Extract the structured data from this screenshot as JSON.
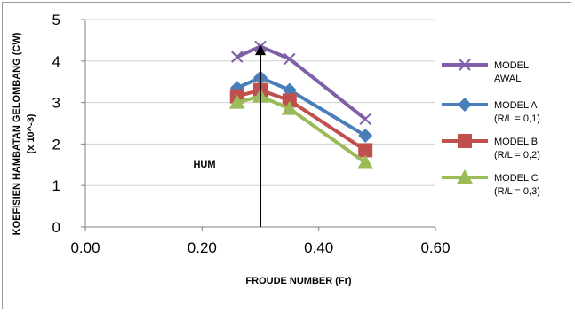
{
  "chart_data": {
    "type": "line",
    "title": "",
    "xlabel": "FROUDE NUMBER (Fr)",
    "ylabel": "KOEFISIEN HAMBATAN GELOMBANG (CW)",
    "ylabel_unit": "(x 10^-3)",
    "xlim": [
      0.0,
      0.6
    ],
    "ylim": [
      0,
      5
    ],
    "x_ticks": [
      "0.00",
      "0.20",
      "0.40",
      "0.60"
    ],
    "y_ticks": [
      "0",
      "1",
      "2",
      "3",
      "4",
      "5"
    ],
    "grid": "horizontal",
    "legend_position": "right",
    "series": [
      {
        "name": "MODEL AWAL",
        "marker": "x",
        "color": "#7f5fa8",
        "x": [
          0.26,
          0.3,
          0.35,
          0.48
        ],
        "y": [
          4.1,
          4.35,
          4.05,
          2.6
        ]
      },
      {
        "name": "MODEL A (R/L = 0,1)",
        "marker": "diamond",
        "color": "#4a7ebb",
        "x": [
          0.26,
          0.3,
          0.35,
          0.48
        ],
        "y": [
          3.35,
          3.6,
          3.3,
          2.2
        ]
      },
      {
        "name": "MODEL B (R/L = 0,2)",
        "marker": "square",
        "color": "#c0504d",
        "x": [
          0.26,
          0.3,
          0.35,
          0.48
        ],
        "y": [
          3.15,
          3.3,
          3.05,
          1.85
        ]
      },
      {
        "name": "MODEL C (R/L = 0,3)",
        "marker": "triangle",
        "color": "#9bbb59",
        "x": [
          0.26,
          0.3,
          0.35,
          0.48
        ],
        "y": [
          3.0,
          3.15,
          2.85,
          1.55
        ]
      }
    ],
    "legend": [
      {
        "line1": "MODEL",
        "line2": "AWAL"
      },
      {
        "line1": "MODEL A",
        "line2": "(R/L = 0,1)"
      },
      {
        "line1": "MODEL B",
        "line2": "(R/L = 0,2)"
      },
      {
        "line1": "MODEL C",
        "line2": "(R/L = 0,3)"
      }
    ],
    "annotation": {
      "label": "HUM",
      "x": 0.3,
      "y_from": 0,
      "y_to": 4.4
    }
  }
}
